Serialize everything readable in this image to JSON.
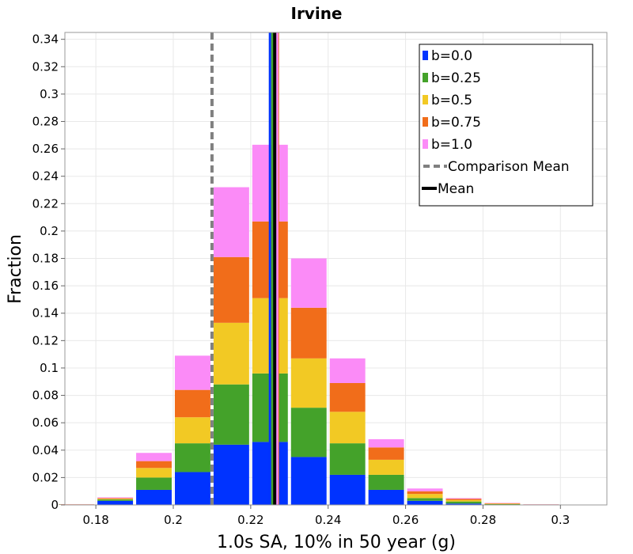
{
  "chart_data": {
    "type": "bar",
    "stacked": true,
    "title": "Irvine",
    "xlabel": "1.0s SA, 10% in 50 year (g)",
    "ylabel": "Fraction",
    "xlim": [
      0.172,
      0.312
    ],
    "ylim": [
      0,
      0.345
    ],
    "bin_width": 0.01,
    "x_ticks": [
      0.18,
      0.2,
      0.22,
      0.24,
      0.26,
      0.28,
      0.3
    ],
    "x_tick_labels": [
      "0.18",
      "0.2",
      "0.22",
      "0.24",
      "0.26",
      "0.28",
      "0.3"
    ],
    "y_ticks": [
      0,
      0.02,
      0.04,
      0.06,
      0.08,
      0.1,
      0.12,
      0.14,
      0.16,
      0.18,
      0.2,
      0.22,
      0.24,
      0.26,
      0.28,
      0.3,
      0.32,
      0.34
    ],
    "y_tick_labels": [
      "0",
      "0.02",
      "0.04",
      "0.06",
      "0.08",
      "0.1",
      "0.12",
      "0.14",
      "0.16",
      "0.18",
      "0.2",
      "0.22",
      "0.24",
      "0.26",
      "0.28",
      "0.3",
      "0.32",
      "0.34"
    ],
    "bin_centers": [
      0.175,
      0.185,
      0.195,
      0.205,
      0.215,
      0.225,
      0.235,
      0.245,
      0.255,
      0.265,
      0.275,
      0.285,
      0.295,
      0.305
    ],
    "series": [
      {
        "name": "b=0.0",
        "color": "#0033ff",
        "values": [
          0.0001,
          0.003,
          0.011,
          0.024,
          0.044,
          0.046,
          0.035,
          0.022,
          0.011,
          0.003,
          0.001,
          0.0003,
          0.0001,
          0.0
        ]
      },
      {
        "name": "b=0.25",
        "color": "#44a22a",
        "values": [
          0.0002,
          0.001,
          0.009,
          0.021,
          0.044,
          0.05,
          0.036,
          0.023,
          0.011,
          0.002,
          0.0015,
          0.0003,
          0.0001,
          0.0
        ]
      },
      {
        "name": "b=0.5",
        "color": "#f2c924",
        "values": [
          0.0001,
          0.0005,
          0.007,
          0.019,
          0.045,
          0.055,
          0.036,
          0.023,
          0.011,
          0.003,
          0.001,
          0.0003,
          0.0001,
          0.0
        ]
      },
      {
        "name": "b=0.75",
        "color": "#f16d1a",
        "values": [
          0.0001,
          0.0005,
          0.005,
          0.02,
          0.048,
          0.056,
          0.037,
          0.021,
          0.009,
          0.002,
          0.001,
          0.0003,
          0.0001,
          0.0
        ]
      },
      {
        "name": "b=1.0",
        "color": "#fb8bf7",
        "values": [
          0.0001,
          0.0005,
          0.006,
          0.025,
          0.051,
          0.056,
          0.036,
          0.018,
          0.006,
          0.002,
          0.0005,
          0.0003,
          0.0001,
          0.0
        ]
      }
    ],
    "reference_lines": [
      {
        "name": "Comparison Mean",
        "x": 0.21,
        "style": "dashed",
        "color": "#808080"
      },
      {
        "name": "Mean",
        "x": 0.2262,
        "style": "solid",
        "color": "#000000"
      }
    ],
    "series_mean_lines": [
      {
        "name": "b=0.0",
        "x": 0.2262,
        "color": "#0033ff"
      },
      {
        "name": "b=0.25",
        "x": 0.2262,
        "color": "#44a22a"
      },
      {
        "name": "b=0.5",
        "x": 0.2266,
        "color": "#f2c924"
      },
      {
        "name": "b=0.75",
        "x": 0.2264,
        "color": "#f16d1a"
      },
      {
        "name": "b=1.0",
        "x": 0.2256,
        "color": "#fb8bf7"
      }
    ],
    "legend": {
      "position": "top-right",
      "entries": [
        {
          "label": "b=0.0",
          "color": "#0033ff",
          "kind": "swatch"
        },
        {
          "label": "b=0.25",
          "color": "#44a22a",
          "kind": "swatch"
        },
        {
          "label": "b=0.5",
          "color": "#f2c924",
          "kind": "swatch"
        },
        {
          "label": "b=0.75",
          "color": "#f16d1a",
          "kind": "swatch"
        },
        {
          "label": "b=1.0",
          "color": "#fb8bf7",
          "kind": "swatch"
        },
        {
          "label": "Comparison Mean",
          "color": "#808080",
          "kind": "dashed"
        },
        {
          "label": "Mean",
          "color": "#000000",
          "kind": "solid"
        }
      ]
    },
    "grid": true
  }
}
